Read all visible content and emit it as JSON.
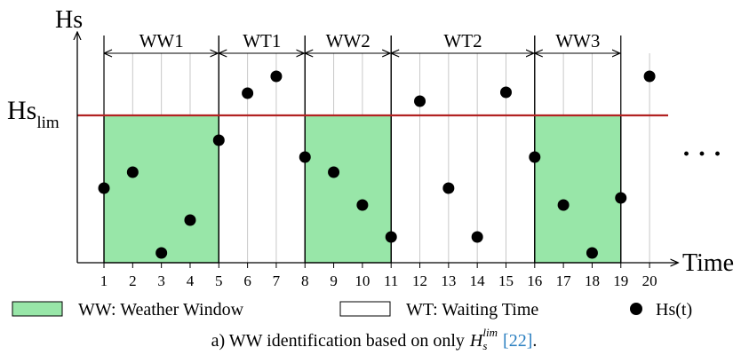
{
  "chart_data": {
    "type": "scatter",
    "y_label": "Hs",
    "x_label": "Time",
    "threshold_label": "Hs",
    "threshold_subscript": "lim",
    "threshold": 6.64,
    "threshold_color": "#b22222",
    "x": [
      1,
      2,
      3,
      4,
      5,
      6,
      7,
      8,
      9,
      10,
      11,
      12,
      13,
      14,
      15,
      16,
      17,
      18,
      19,
      20
    ],
    "values": [
      3.36,
      4.08,
      0.44,
      1.92,
      5.52,
      7.64,
      8.4,
      4.76,
      4.08,
      2.6,
      1.16,
      7.28,
      3.36,
      1.16,
      7.68,
      4.76,
      2.6,
      0.44,
      2.92,
      8.4
    ],
    "color": "#000000",
    "xlim": [
      0,
      21
    ],
    "ylim": [
      0,
      10
    ],
    "xticks": [
      1,
      2,
      3,
      4,
      5,
      6,
      7,
      8,
      9,
      10,
      11,
      12,
      13,
      14,
      15,
      16,
      17,
      18,
      19,
      20
    ],
    "grid": true,
    "window_color": "#98e6a8",
    "windows": [
      {
        "label": "WW1",
        "start": 1,
        "end": 5,
        "shaded": true
      },
      {
        "label": "WT1",
        "start": 5,
        "end": 8,
        "shaded": false
      },
      {
        "label": "WW2",
        "start": 8,
        "end": 11,
        "shaded": true
      },
      {
        "label": "WT2",
        "start": 11,
        "end": 16,
        "shaded": false
      },
      {
        "label": "WW3",
        "start": 16,
        "end": 19,
        "shaded": true
      }
    ],
    "ellipsis": "· · ·",
    "legend": [
      {
        "label": "WW: Weather Window",
        "marker": "box",
        "color": "#98e6a8"
      },
      {
        "label": "WT: Waiting Time",
        "marker": "box",
        "color": "#ffffff"
      },
      {
        "label": "Hs(t)",
        "marker": "dot",
        "color": "#000000"
      }
    ],
    "caption": {
      "text": "a) WW identification based on only",
      "symbol": "H",
      "sub": "s",
      "sup": "lim",
      "ref": "[22]",
      "end": "."
    }
  }
}
